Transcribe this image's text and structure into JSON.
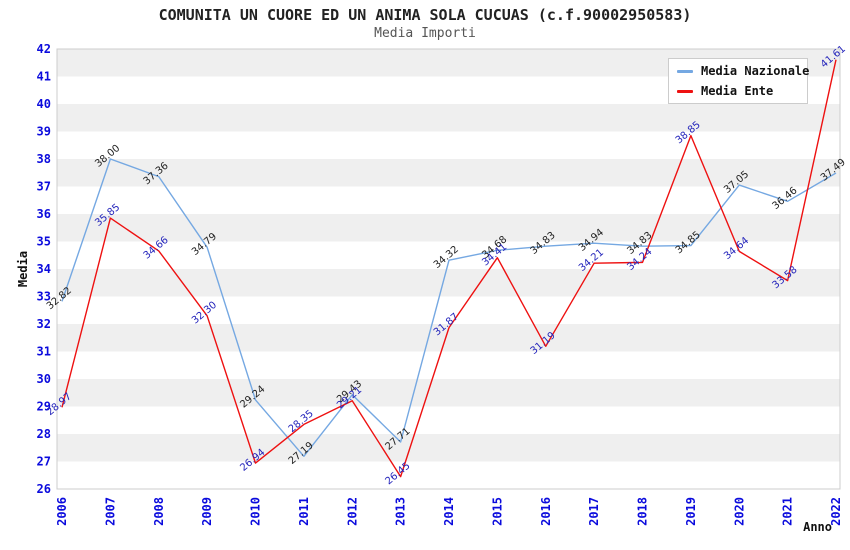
{
  "chart_data": {
    "type": "line",
    "title": "COMUNITA UN CUORE ED UN ANIMA SOLA CUCUAS (c.f.90002950583)",
    "subtitle": "Media Importi",
    "xlabel": "Anno",
    "ylabel": "Media",
    "x": [
      2006,
      2007,
      2008,
      2009,
      2010,
      2011,
      2012,
      2013,
      2014,
      2015,
      2016,
      2017,
      2018,
      2019,
      2020,
      2021,
      2022
    ],
    "ylim": [
      26,
      42
    ],
    "y_tick_step": 1,
    "grid": "alternating-horizontal-bands",
    "legend_position": "top-right-inside",
    "series": [
      {
        "name": "Media Nazionale",
        "color": "#75a8e2",
        "label_color": "#222222",
        "values": [
          32.82,
          38.0,
          37.36,
          34.79,
          29.24,
          27.19,
          29.43,
          27.71,
          34.32,
          34.68,
          34.83,
          34.94,
          34.83,
          34.85,
          37.05,
          36.46,
          37.49
        ]
      },
      {
        "name": "Media Ente",
        "color": "#ee1111",
        "label_color": "#2424bb",
        "values": [
          28.97,
          35.85,
          34.66,
          32.3,
          26.94,
          28.35,
          29.21,
          26.45,
          31.87,
          34.41,
          31.19,
          34.21,
          34.24,
          38.85,
          34.64,
          33.58,
          41.61
        ]
      }
    ],
    "colors": {
      "tick": "#0b0bdd",
      "band": "#efefef",
      "plot_border": "#cccccc",
      "axis_title": "#111111"
    }
  }
}
